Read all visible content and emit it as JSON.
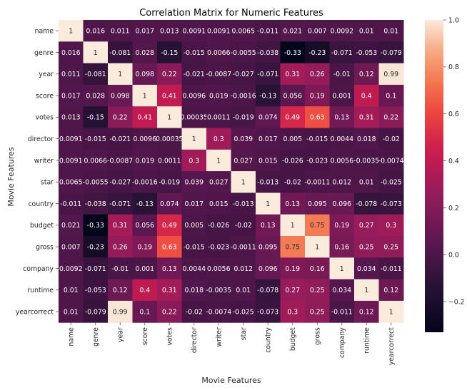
{
  "chart_data": {
    "type": "heatmap",
    "title": "Correlation Matrix for Numeric Features",
    "xlabel": "Movie Features",
    "ylabel": "Movie Features",
    "variables": [
      "name",
      "genre",
      "year",
      "score",
      "votes",
      "director",
      "writer",
      "star",
      "country",
      "budget",
      "gross",
      "company",
      "runtime",
      "yearcorrect"
    ],
    "values": [
      [
        1,
        0.016,
        0.011,
        0.017,
        0.013,
        0.0091,
        0.0091,
        0.0065,
        -0.011,
        0.021,
        0.007,
        0.0092,
        0.01,
        0.01
      ],
      [
        0.016,
        1,
        -0.081,
        0.028,
        -0.15,
        -0.015,
        0.0066,
        -0.0055,
        -0.038,
        -0.33,
        -0.23,
        -0.071,
        -0.053,
        -0.079
      ],
      [
        0.011,
        -0.081,
        1,
        0.098,
        0.22,
        -0.021,
        -0.0087,
        -0.027,
        -0.071,
        0.31,
        0.26,
        -0.01,
        0.12,
        0.99
      ],
      [
        0.017,
        0.028,
        0.098,
        1,
        0.41,
        0.0096,
        0.019,
        -0.0016,
        -0.13,
        0.056,
        0.19,
        0.001,
        0.4,
        0.1
      ],
      [
        0.013,
        -0.15,
        0.22,
        0.41,
        1,
        0.00035,
        0.0011,
        -0.019,
        0.074,
        0.49,
        0.63,
        0.13,
        0.31,
        0.22
      ],
      [
        0.0091,
        -0.015,
        -0.021,
        0.0096,
        0.00035,
        1,
        0.3,
        0.039,
        0.017,
        0.005,
        -0.015,
        0.0044,
        0.018,
        -0.02
      ],
      [
        0.0091,
        0.0066,
        -0.0087,
        0.019,
        0.0011,
        0.3,
        1,
        0.027,
        0.015,
        -0.026,
        -0.023,
        0.0056,
        -0.0035,
        -0.0074
      ],
      [
        0.0065,
        -0.0055,
        -0.027,
        -0.0016,
        -0.019,
        0.039,
        0.027,
        1,
        -0.013,
        -0.02,
        -0.0011,
        0.012,
        0.01,
        -0.025
      ],
      [
        -0.011,
        -0.038,
        -0.071,
        -0.13,
        0.074,
        0.017,
        0.015,
        -0.013,
        1,
        0.13,
        0.095,
        0.096,
        -0.078,
        -0.073
      ],
      [
        0.021,
        -0.33,
        0.31,
        0.056,
        0.49,
        0.005,
        -0.026,
        -0.02,
        0.13,
        1,
        0.75,
        0.19,
        0.27,
        0.3
      ],
      [
        0.007,
        -0.23,
        0.26,
        0.19,
        0.63,
        -0.015,
        -0.023,
        -0.0011,
        0.095,
        0.75,
        1,
        0.16,
        0.25,
        0.25
      ],
      [
        0.0092,
        -0.071,
        -0.01,
        0.001,
        0.13,
        0.0044,
        0.0056,
        0.012,
        0.096,
        0.19,
        0.16,
        1,
        0.034,
        -0.011
      ],
      [
        0.01,
        -0.053,
        0.12,
        0.4,
        0.31,
        0.018,
        -0.0035,
        0.01,
        -0.078,
        0.27,
        0.25,
        0.034,
        1,
        0.12
      ],
      [
        0.01,
        -0.079,
        0.99,
        0.1,
        0.22,
        -0.02,
        -0.0074,
        -0.025,
        -0.073,
        0.3,
        0.25,
        -0.011,
        0.12,
        1
      ]
    ],
    "vmin": -0.33,
    "vmax": 1.0,
    "colormap": "rocket",
    "colorbar": {
      "ticks": [
        1.0,
        0.8,
        0.6,
        0.4,
        0.2,
        0.0,
        -0.2
      ],
      "tick_labels": [
        "1.0",
        "0.8",
        "0.6",
        "0.4",
        "0.2",
        "0.0",
        "−0.2"
      ]
    },
    "annotated": true,
    "grid": false,
    "legend": "colorbar-right"
  }
}
